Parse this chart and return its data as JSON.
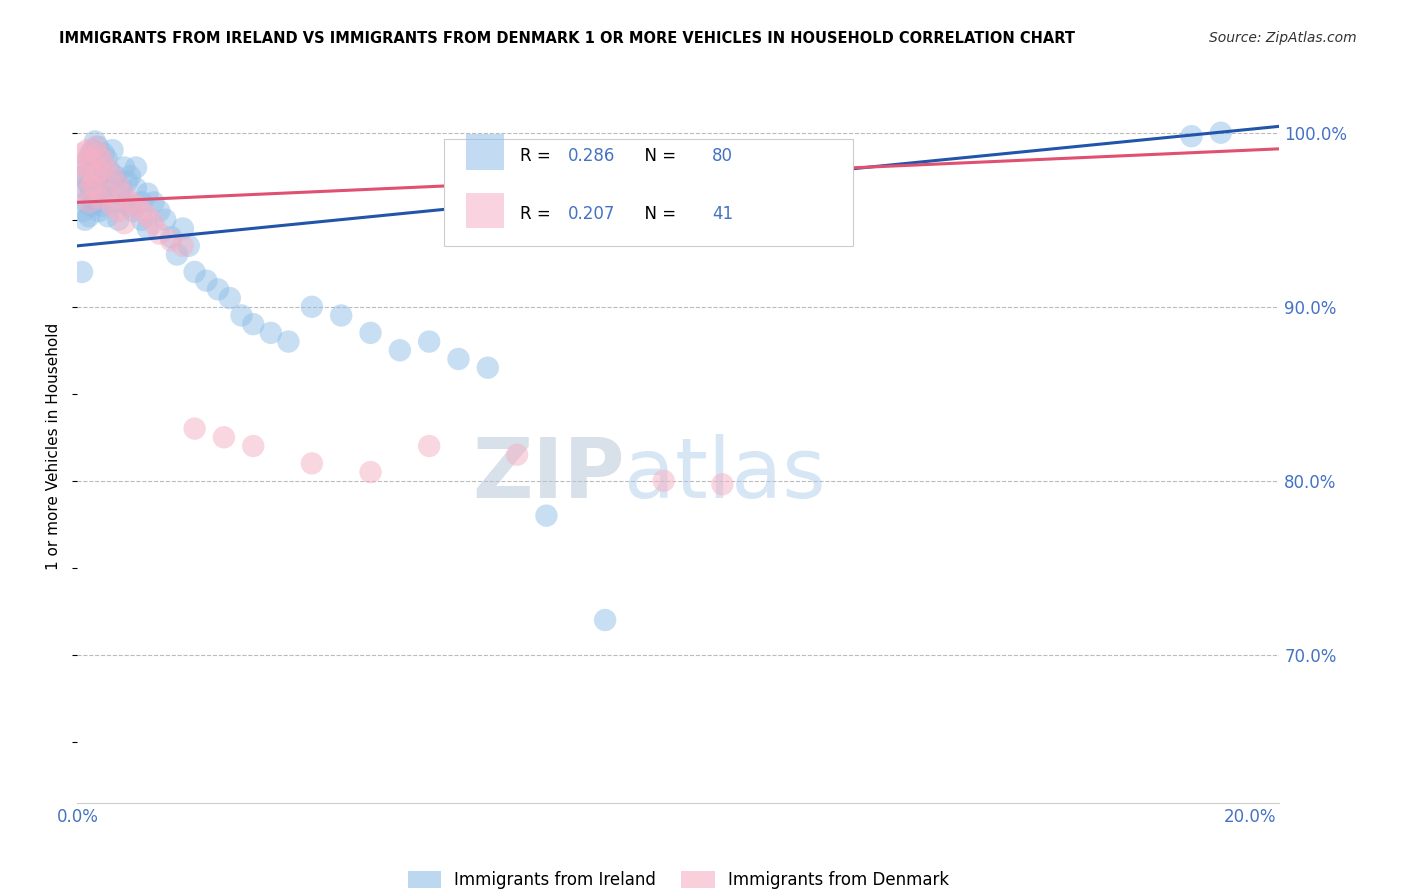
{
  "title": "IMMIGRANTS FROM IRELAND VS IMMIGRANTS FROM DENMARK 1 OR MORE VEHICLES IN HOUSEHOLD CORRELATION CHART",
  "source": "Source: ZipAtlas.com",
  "ylabel": "1 or more Vehicles in Household",
  "xlim": [
    0.0,
    0.205
  ],
  "ylim": [
    0.615,
    1.025
  ],
  "xtick_positions": [
    0.0,
    0.05,
    0.1,
    0.15,
    0.2
  ],
  "xtick_labels": [
    "0.0%",
    "",
    "",
    "",
    "20.0%"
  ],
  "ytick_positions": [
    0.7,
    0.8,
    0.9,
    1.0
  ],
  "ytick_labels": [
    "70.0%",
    "80.0%",
    "90.0%",
    "100.0%"
  ],
  "ireland_R": 0.286,
  "ireland_N": 80,
  "denmark_R": 0.207,
  "denmark_N": 41,
  "ireland_color": "#90bfe8",
  "denmark_color": "#f5b0c5",
  "ireland_line_color": "#2255aa",
  "denmark_line_color": "#e05070",
  "legend_label_ireland": "Immigrants from Ireland",
  "legend_label_denmark": "Immigrants from Denmark",
  "watermark_zip": "ZIP",
  "watermark_atlas": "atlas",
  "title_fontsize": 11,
  "label_fontsize": 12,
  "legend_fontsize": 12,
  "ireland_x": [
    0.0008,
    0.001,
    0.001,
    0.0012,
    0.0013,
    0.0015,
    0.0015,
    0.0017,
    0.0018,
    0.002,
    0.002,
    0.0022,
    0.0022,
    0.0025,
    0.0025,
    0.0027,
    0.0028,
    0.003,
    0.003,
    0.003,
    0.0032,
    0.0033,
    0.0035,
    0.0035,
    0.0037,
    0.004,
    0.004,
    0.0042,
    0.0043,
    0.0045,
    0.0045,
    0.005,
    0.005,
    0.0052,
    0.0055,
    0.006,
    0.006,
    0.0063,
    0.0065,
    0.007,
    0.007,
    0.0075,
    0.008,
    0.008,
    0.0085,
    0.009,
    0.009,
    0.0095,
    0.01,
    0.01,
    0.011,
    0.011,
    0.012,
    0.012,
    0.013,
    0.014,
    0.015,
    0.016,
    0.017,
    0.018,
    0.019,
    0.02,
    0.022,
    0.024,
    0.026,
    0.028,
    0.03,
    0.033,
    0.036,
    0.04,
    0.045,
    0.05,
    0.055,
    0.06,
    0.065,
    0.07,
    0.08,
    0.09,
    0.19,
    0.195
  ],
  "ireland_y": [
    0.92,
    0.975,
    0.955,
    0.968,
    0.95,
    0.98,
    0.96,
    0.972,
    0.985,
    0.97,
    0.952,
    0.988,
    0.965,
    0.978,
    0.958,
    0.99,
    0.968,
    0.995,
    0.978,
    0.96,
    0.985,
    0.968,
    0.992,
    0.972,
    0.955,
    0.982,
    0.965,
    0.975,
    0.958,
    0.988,
    0.97,
    0.985,
    0.968,
    0.952,
    0.978,
    0.99,
    0.972,
    0.96,
    0.975,
    0.965,
    0.95,
    0.968,
    0.98,
    0.96,
    0.972,
    0.958,
    0.975,
    0.955,
    0.968,
    0.98,
    0.96,
    0.95,
    0.965,
    0.945,
    0.96,
    0.955,
    0.95,
    0.94,
    0.93,
    0.945,
    0.935,
    0.92,
    0.915,
    0.91,
    0.905,
    0.895,
    0.89,
    0.885,
    0.88,
    0.9,
    0.895,
    0.885,
    0.875,
    0.88,
    0.87,
    0.865,
    0.78,
    0.72,
    0.998,
    1.0
  ],
  "denmark_x": [
    0.0008,
    0.001,
    0.0013,
    0.0015,
    0.0017,
    0.002,
    0.002,
    0.0022,
    0.0025,
    0.003,
    0.003,
    0.0032,
    0.0035,
    0.004,
    0.004,
    0.0042,
    0.005,
    0.005,
    0.006,
    0.006,
    0.007,
    0.007,
    0.008,
    0.008,
    0.009,
    0.01,
    0.011,
    0.012,
    0.013,
    0.014,
    0.016,
    0.018,
    0.02,
    0.025,
    0.03,
    0.04,
    0.05,
    0.06,
    0.075,
    0.1,
    0.11
  ],
  "denmark_y": [
    0.988,
    0.975,
    0.982,
    0.965,
    0.99,
    0.978,
    0.96,
    0.985,
    0.97,
    0.992,
    0.975,
    0.968,
    0.988,
    0.978,
    0.962,
    0.985,
    0.98,
    0.965,
    0.975,
    0.958,
    0.97,
    0.955,
    0.965,
    0.948,
    0.96,
    0.958,
    0.955,
    0.952,
    0.948,
    0.942,
    0.938,
    0.935,
    0.83,
    0.825,
    0.82,
    0.81,
    0.805,
    0.82,
    0.815,
    0.8,
    0.798
  ]
}
